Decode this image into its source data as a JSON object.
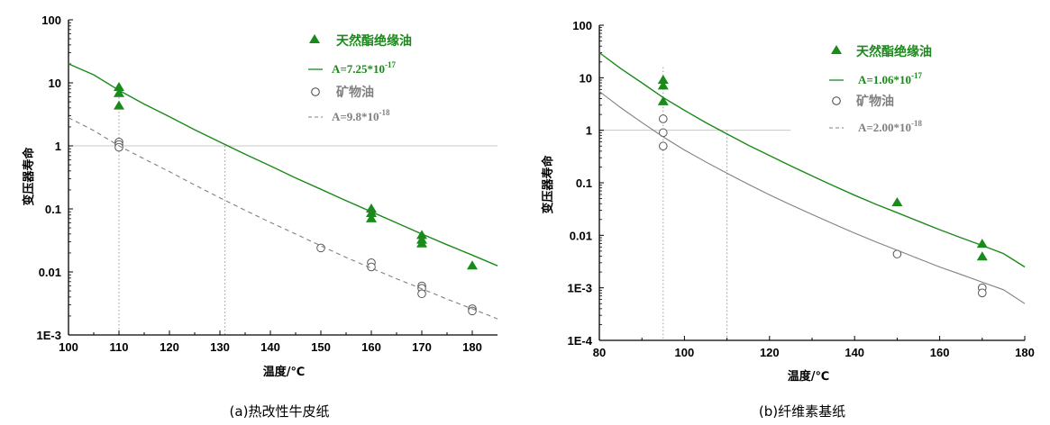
{
  "charts": [
    {
      "caption": "(a)热改性牛皮纸",
      "ylabel": "变压器寿命",
      "xlabel": "温度/℃",
      "x_ticks": [
        "100",
        "110",
        "120",
        "130",
        "140",
        "150",
        "160",
        "170",
        "180"
      ],
      "y_ticks": [
        "1E-3",
        "0.01",
        "0.1",
        "1",
        "10",
        "100"
      ],
      "legend": [
        {
          "label": "天然酯绝缘油",
          "color": "#1a8a1a"
        },
        {
          "eq_base": "A=7.25*10",
          "eq_exp": "-17",
          "color": "#1a8a1a"
        },
        {
          "label": "矿物油",
          "color": "#808080"
        },
        {
          "eq_base": "A=9.8*10",
          "eq_exp": "-18",
          "color": "#808080"
        }
      ]
    },
    {
      "caption": "(b)纤维素基纸",
      "ylabel": "变压器寿命",
      "xlabel": "温度/℃",
      "x_ticks": [
        "80",
        "100",
        "120",
        "140",
        "160",
        "180"
      ],
      "y_ticks": [
        "1E-4",
        "1E-3",
        "0.01",
        "0.1",
        "1",
        "10",
        "100"
      ],
      "legend": [
        {
          "label": "天然酯绝缘油",
          "color": "#1a8a1a"
        },
        {
          "eq_base": "A=1.06*10",
          "eq_exp": "-17",
          "color": "#1a8a1a"
        },
        {
          "label": "矿物油",
          "color": "#808080"
        },
        {
          "eq_base": "A=2.00*10",
          "eq_exp": "-18",
          "color": "#808080"
        }
      ]
    }
  ],
  "chart_data": [
    {
      "type": "scatter",
      "title": "(a)热改性牛皮纸",
      "xlabel": "温度/℃",
      "ylabel": "变压器寿命",
      "xlim": [
        100,
        185
      ],
      "ylim": [
        0.001,
        100
      ],
      "yscale": "log",
      "reference_line_y": 1,
      "reference_x": [
        110,
        131
      ],
      "series": [
        {
          "name": "天然酯绝缘油",
          "marker": "triangle",
          "color": "#1a8a1a",
          "points": [
            [
              110,
              8.5
            ],
            [
              110,
              6.8
            ],
            [
              110,
              4.3
            ],
            [
              160,
              0.1
            ],
            [
              160,
              0.085
            ],
            [
              160,
              0.07
            ],
            [
              170,
              0.038
            ],
            [
              170,
              0.032
            ],
            [
              170,
              0.028
            ],
            [
              180,
              0.0125
            ]
          ]
        },
        {
          "name": "A=7.25*10-17",
          "type": "line",
          "style": "solid",
          "color": "#1a8a1a",
          "x": [
            100,
            105,
            110,
            115,
            120,
            125,
            130,
            135,
            140,
            145,
            150,
            155,
            160,
            165,
            170,
            175,
            180,
            185
          ],
          "y": [
            20,
            13.4,
            7.6,
            4.6,
            2.9,
            1.8,
            1.15,
            0.74,
            0.48,
            0.31,
            0.205,
            0.135,
            0.09,
            0.06,
            0.04,
            0.027,
            0.0185,
            0.0125
          ]
        },
        {
          "name": "矿物油",
          "marker": "circle",
          "color": "#555555",
          "points": [
            [
              110,
              1.15
            ],
            [
              110,
              1.05
            ],
            [
              110,
              0.95
            ],
            [
              150,
              0.024
            ],
            [
              160,
              0.014
            ],
            [
              160,
              0.012
            ],
            [
              170,
              0.006
            ],
            [
              170,
              0.0055
            ],
            [
              170,
              0.0045
            ],
            [
              180,
              0.0026
            ],
            [
              180,
              0.0024
            ]
          ]
        },
        {
          "name": "A=9.8*10-18",
          "type": "line",
          "style": "dashed",
          "color": "#808080",
          "x": [
            100,
            105,
            110,
            115,
            120,
            125,
            130,
            135,
            140,
            145,
            150,
            155,
            160,
            165,
            170,
            175,
            180,
            185
          ],
          "y": [
            2.8,
            1.75,
            1.0,
            0.62,
            0.39,
            0.24,
            0.15,
            0.095,
            0.061,
            0.04,
            0.026,
            0.017,
            0.0115,
            0.0078,
            0.0054,
            0.0037,
            0.0026,
            0.0018
          ]
        }
      ]
    },
    {
      "type": "scatter",
      "title": "(b)纤维素基纸",
      "xlabel": "温度/℃",
      "ylabel": "变压器寿命",
      "xlim": [
        80,
        180
      ],
      "ylim": [
        0.0001,
        100
      ],
      "yscale": "log",
      "reference_line_y": 1,
      "reference_x": [
        95,
        110
      ],
      "series": [
        {
          "name": "天然酯绝缘油",
          "marker": "triangle",
          "color": "#1a8a1a",
          "points": [
            [
              95,
              9
            ],
            [
              95,
              7
            ],
            [
              95,
              3.5
            ],
            [
              150,
              0.042
            ],
            [
              170,
              0.0068
            ],
            [
              170,
              0.0039
            ]
          ]
        },
        {
          "name": "A=1.06*10-17",
          "type": "line",
          "style": "solid",
          "color": "#1a8a1a",
          "x": [
            80,
            85,
            90,
            95,
            100,
            105,
            110,
            115,
            120,
            125,
            130,
            135,
            140,
            145,
            150,
            155,
            160,
            165,
            170,
            175,
            180
          ],
          "y": [
            30,
            15,
            8,
            4.2,
            2.4,
            1.4,
            0.85,
            0.52,
            0.33,
            0.21,
            0.135,
            0.088,
            0.058,
            0.039,
            0.027,
            0.0185,
            0.0128,
            0.009,
            0.0064,
            0.0045,
            0.0025
          ]
        },
        {
          "name": "矿物油",
          "marker": "circle",
          "color": "#555555",
          "points": [
            [
              95,
              1.65
            ],
            [
              95,
              0.9
            ],
            [
              95,
              0.5
            ],
            [
              150,
              0.0044
            ],
            [
              170,
              0.001
            ],
            [
              170,
              0.0008
            ]
          ]
        },
        {
          "name": "A=2.00*10-18",
          "type": "line",
          "style": "solid",
          "color": "#808080",
          "x": [
            80,
            85,
            90,
            95,
            100,
            105,
            110,
            115,
            120,
            125,
            130,
            135,
            140,
            145,
            150,
            155,
            160,
            165,
            170,
            175,
            180
          ],
          "y": [
            5.5,
            2.7,
            1.4,
            0.75,
            0.42,
            0.25,
            0.152,
            0.094,
            0.059,
            0.038,
            0.025,
            0.0165,
            0.011,
            0.0075,
            0.0052,
            0.0036,
            0.0025,
            0.0018,
            0.00128,
            0.00092,
            0.0005
          ]
        }
      ]
    }
  ]
}
